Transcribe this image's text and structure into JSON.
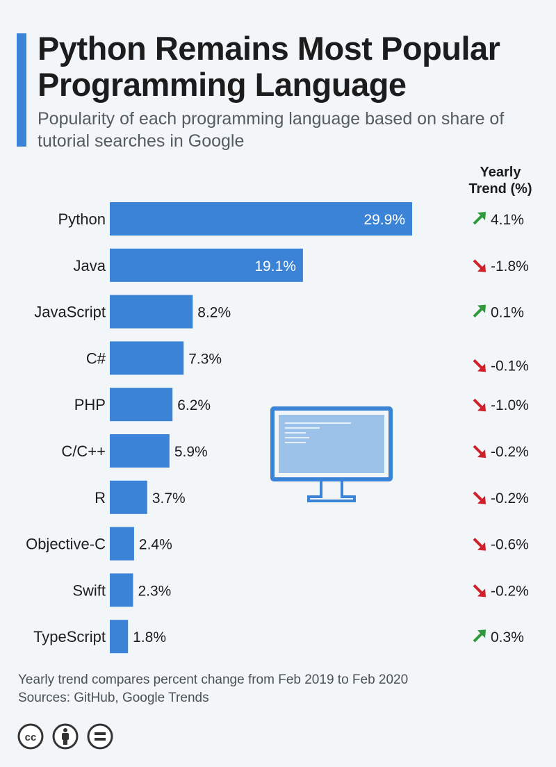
{
  "header": {
    "title": "Python Remains Most Popular Programming Language",
    "subtitle": "Popularity of each programming language based on share of tutorial searches in Google"
  },
  "colors": {
    "bar": "#3a83d6",
    "accent": "#3a83d6",
    "trend_up": "#2e9a3c",
    "trend_down": "#d0202a",
    "monitor_screen": "#9cc2ea",
    "monitor_frame": "#3a83d6"
  },
  "chart_data": {
    "type": "bar",
    "orientation": "horizontal",
    "categories": [
      "Python",
      "Java",
      "JavaScript",
      "C#",
      "PHP",
      "C/C++",
      "R",
      "Objective-C",
      "Swift",
      "TypeScript"
    ],
    "values": [
      29.9,
      19.1,
      8.2,
      7.3,
      6.2,
      5.9,
      3.7,
      2.4,
      2.3,
      1.8
    ],
    "value_labels": [
      "29.9%",
      "19.1%",
      "8.2%",
      "7.3%",
      "6.2%",
      "5.9%",
      "3.7%",
      "2.4%",
      "2.3%",
      "1.8%"
    ],
    "unit": "%",
    "xlim": [
      0,
      30
    ],
    "grid": false,
    "trend_header": "Yearly Trend (%)",
    "trend": [
      {
        "value": 4.1,
        "label": "4.1%",
        "direction": "up"
      },
      {
        "value": -1.8,
        "label": "-1.8%",
        "direction": "down"
      },
      {
        "value": 0.1,
        "label": "0.1%",
        "direction": "up"
      },
      {
        "value": -0.1,
        "label": "-0.1%",
        "direction": "down"
      },
      {
        "value": -1.0,
        "label": "-1.0%",
        "direction": "down"
      },
      {
        "value": -0.2,
        "label": "-0.2%",
        "direction": "down"
      },
      {
        "value": -0.2,
        "label": "-0.2%",
        "direction": "down"
      },
      {
        "value": -0.6,
        "label": "-0.6%",
        "direction": "down"
      },
      {
        "value": -0.2,
        "label": "-0.2%",
        "direction": "down"
      },
      {
        "value": 0.3,
        "label": "0.3%",
        "direction": "up"
      }
    ]
  },
  "footer": {
    "note": "Yearly trend compares percent change from Feb 2019 to Feb 2020",
    "sources": "Sources: GitHub, Google Trends"
  },
  "license_icons": [
    "cc-icon",
    "attribution-icon",
    "no-derivatives-icon"
  ]
}
